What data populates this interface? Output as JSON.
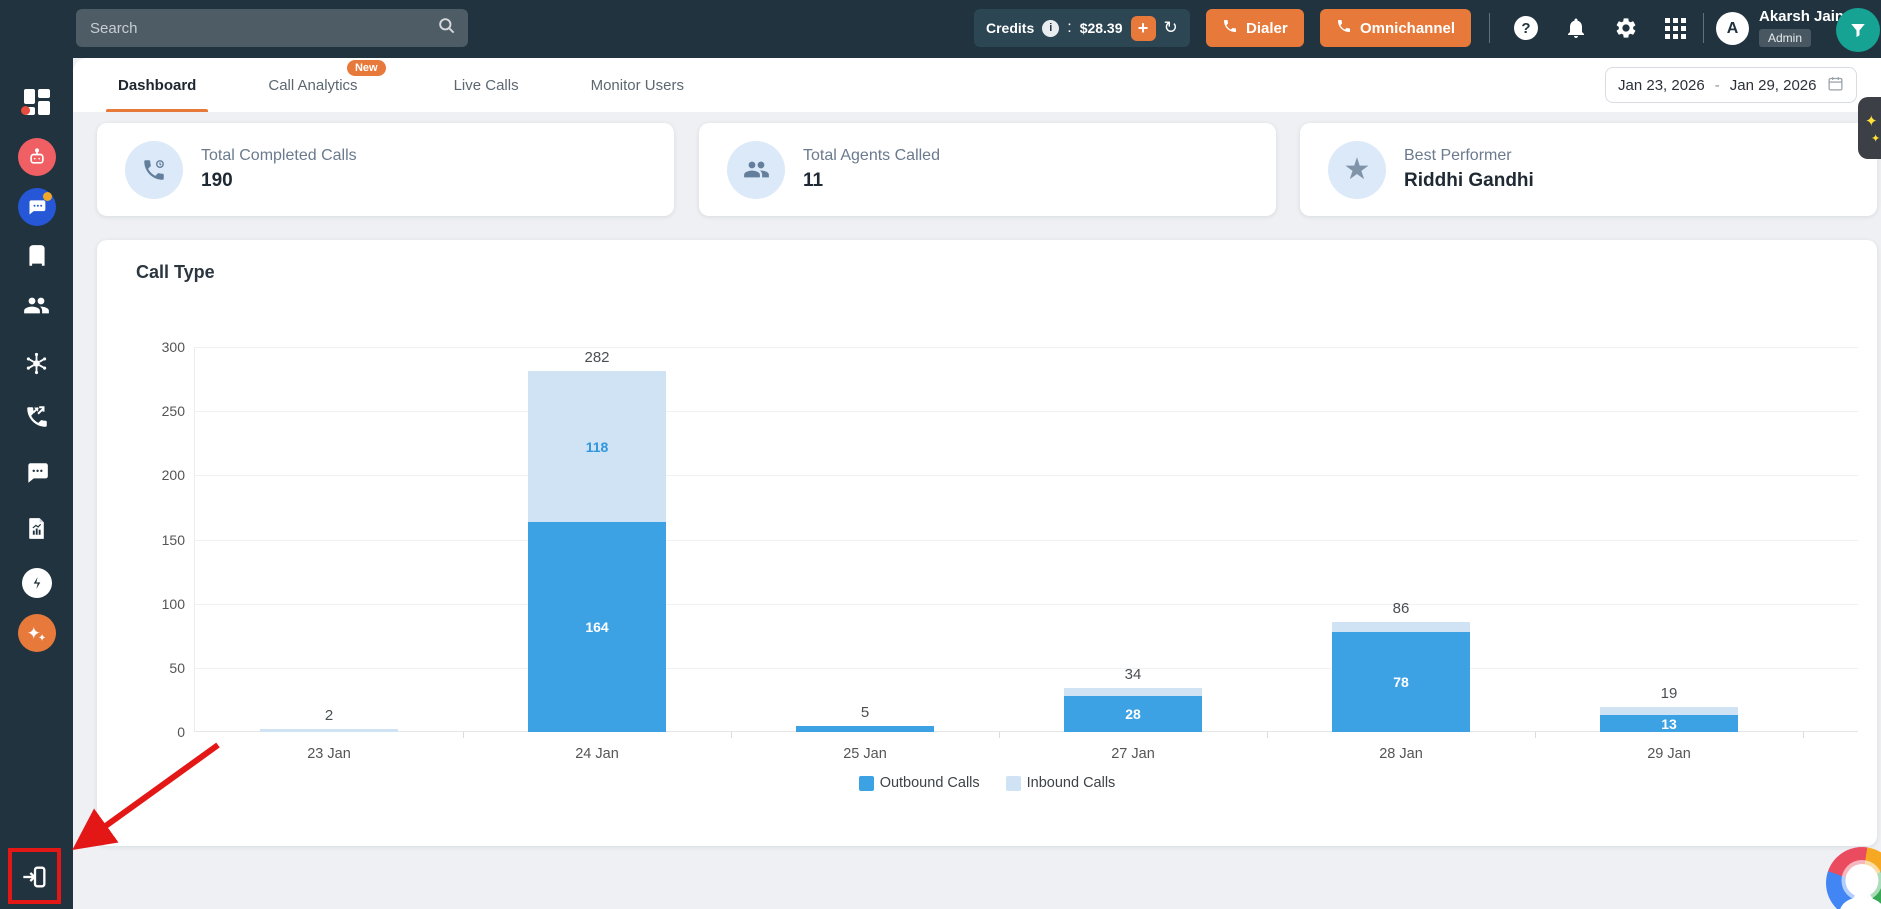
{
  "topbar": {
    "search_placeholder": "Search",
    "credits": {
      "label": "Credits",
      "separator": ":",
      "value": "$28.39",
      "add_label": "+"
    },
    "dialer_label": "Dialer",
    "omnichannel_label": "Omnichannel",
    "user": {
      "name": "Akarsh Jain",
      "role": "Admin",
      "avatar_initial": "A"
    }
  },
  "sidebar": {
    "icons": [
      "brand-logo",
      "dashboard",
      "ai-bot",
      "team-chat",
      "company",
      "users",
      "integrations",
      "call-planner",
      "sms-chat",
      "reports",
      "power-dialer",
      "ai-assistant",
      "collapse-sidebar"
    ]
  },
  "tabs": [
    {
      "label": "Dashboard",
      "active": true
    },
    {
      "label": "Call Analytics",
      "badge": "New",
      "active": false
    },
    {
      "label": "Live Calls",
      "active": false
    },
    {
      "label": "Monitor Users",
      "active": false
    }
  ],
  "date_range": {
    "start": "Jan 23, 2026",
    "separator": "-",
    "end": "Jan 29, 2026"
  },
  "stat_cards": [
    {
      "icon": "phone-completed-icon",
      "label": "Total Completed Calls",
      "value": "190"
    },
    {
      "icon": "agents-icon",
      "label": "Total Agents Called",
      "value": "11"
    },
    {
      "icon": "star-icon",
      "label": "Best Performer",
      "value": "Riddhi Gandhi"
    }
  ],
  "chart_data": {
    "type": "bar",
    "stacked": true,
    "title": "Call Type",
    "categories": [
      "23 Jan",
      "24 Jan",
      "25 Jan",
      "27 Jan",
      "28 Jan",
      "29 Jan"
    ],
    "series": [
      {
        "name": "Outbound Calls",
        "color": "#3da2e4",
        "label_color": "#ffffff",
        "values": [
          0,
          164,
          5,
          28,
          78,
          13
        ]
      },
      {
        "name": "Inbound Calls",
        "color": "#cfe3f5",
        "label_color": "#2f96dc",
        "values": [
          2,
          118,
          0,
          6,
          8,
          6
        ]
      }
    ],
    "totals": [
      2,
      282,
      5,
      34,
      86,
      19
    ],
    "xlabel": "",
    "ylabel": "",
    "ylim": [
      0,
      300
    ],
    "yticks": [
      0,
      50,
      100,
      150,
      200,
      250,
      300
    ],
    "grid": true,
    "legend_position": "bottom"
  },
  "annotation": {
    "type": "red arrow and red rectangle highlight",
    "target": "collapse-sidebar icon (bottom-left)"
  },
  "colors": {
    "topbar_bg": "#20333f",
    "accent_orange": "#e7793b",
    "outbound_blue": "#3da2e4",
    "inbound_blue": "#cfe3f5",
    "filter_teal": "#16a394",
    "annotation_red": "#e41717"
  }
}
